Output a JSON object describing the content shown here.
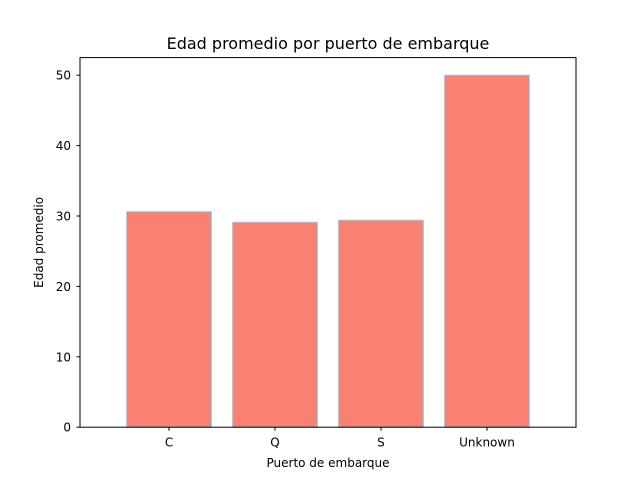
{
  "chart_data": {
    "type": "bar",
    "title": "Edad promedio por puerto de embarque",
    "xlabel": "Puerto de embarque",
    "ylabel": "Edad promedio",
    "categories": [
      "C",
      "Q",
      "S",
      "Unknown"
    ],
    "values": [
      30.6,
      29.1,
      29.4,
      50.0
    ],
    "ylim": [
      0,
      52.5
    ],
    "yticks": [
      0,
      10,
      20,
      30,
      40,
      50
    ],
    "grid": false,
    "bar_color": "#fa8072",
    "bar_edge_color": "#87ceeb"
  }
}
